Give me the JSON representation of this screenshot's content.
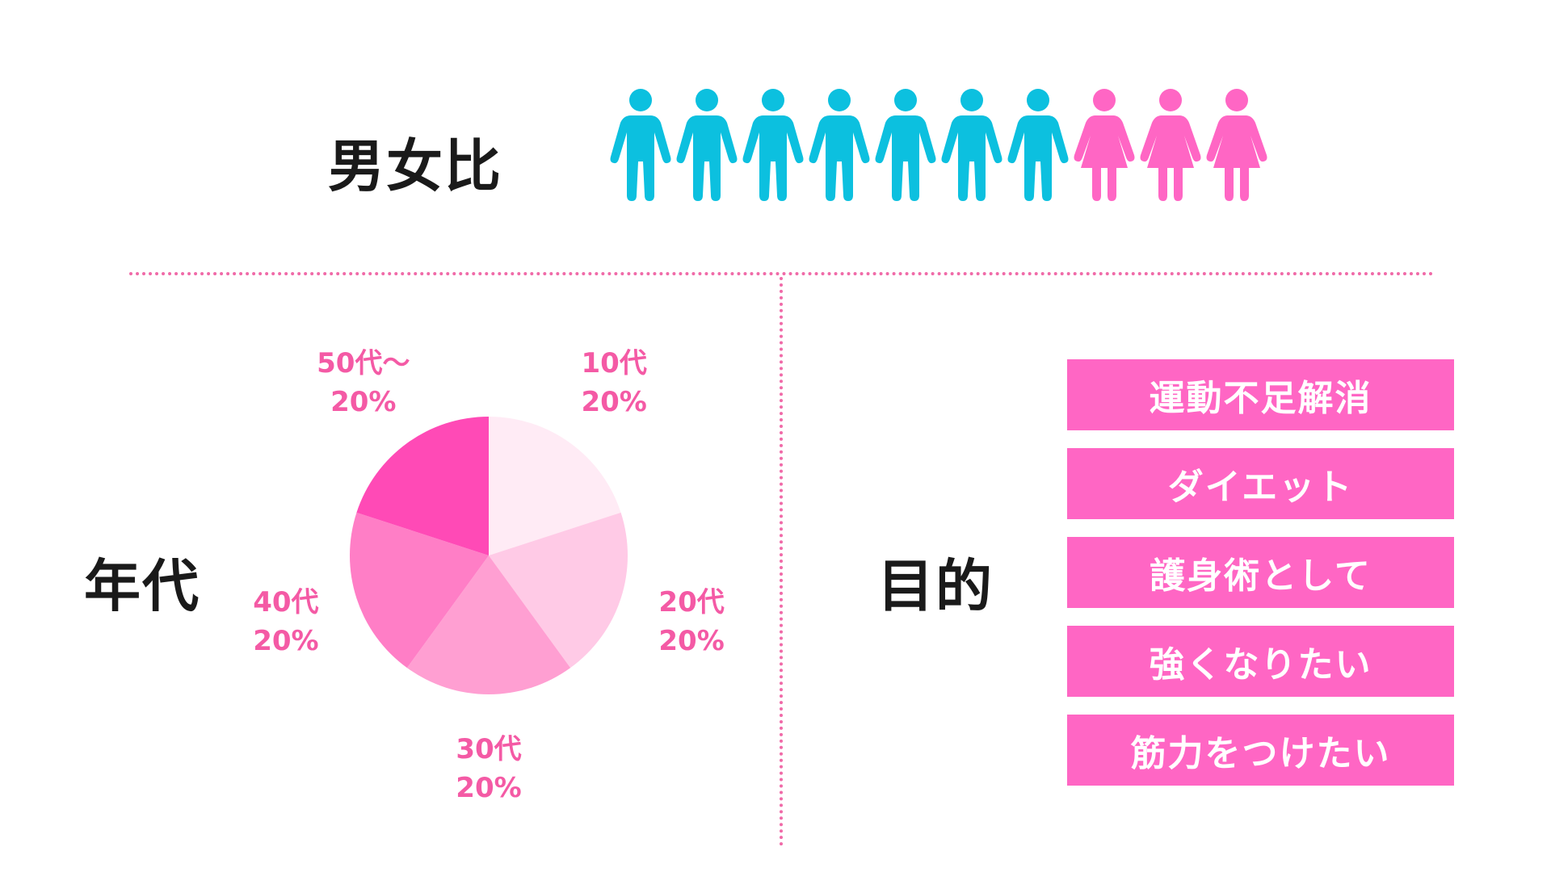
{
  "sections": {
    "gender_ratio_title": "男女比",
    "age_title": "年代",
    "purpose_title": "目的"
  },
  "gender_ratio": {
    "people": [
      {
        "gender": "male",
        "icon": "man-icon"
      },
      {
        "gender": "male",
        "icon": "man-icon"
      },
      {
        "gender": "male",
        "icon": "man-icon"
      },
      {
        "gender": "male",
        "icon": "man-icon"
      },
      {
        "gender": "male",
        "icon": "man-icon"
      },
      {
        "gender": "male",
        "icon": "man-icon"
      },
      {
        "gender": "male",
        "icon": "man-icon"
      },
      {
        "gender": "female",
        "icon": "woman-icon"
      },
      {
        "gender": "female",
        "icon": "woman-icon"
      },
      {
        "gender": "female",
        "icon": "woman-icon"
      }
    ],
    "colors": {
      "male": "#0cc0df",
      "female": "#ff66c4"
    }
  },
  "chart_data": {
    "type": "pie",
    "categories": [
      "10代",
      "20代",
      "30代",
      "40代",
      "50代〜"
    ],
    "values": [
      20,
      20,
      20,
      20,
      20
    ],
    "labels": [
      "20%",
      "20%",
      "20%",
      "20%",
      "20%"
    ],
    "colors": [
      "#ffebf5",
      "#ffcae6",
      "#ff9fd2",
      "#ff7ec6",
      "#ff4ab6"
    ],
    "label_color": "#f45aa5"
  },
  "purposes": [
    "運動不足解消",
    "ダイエット",
    "護身術として",
    "強くなりたい",
    "筋力をつけたい"
  ],
  "colors": {
    "accent": "#ff66c4",
    "divider": "#f06aa8",
    "heading": "#1a1a1a"
  }
}
